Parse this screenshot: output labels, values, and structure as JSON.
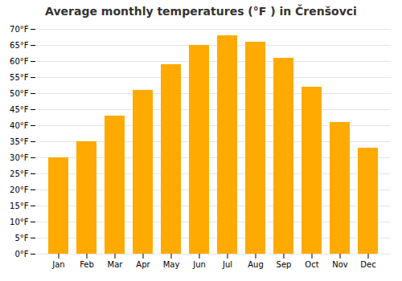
{
  "chart_data": {
    "type": "bar",
    "title": "Average monthly temperatures (°F ) in Črenšovci",
    "categories": [
      "Jan",
      "Feb",
      "Mar",
      "Apr",
      "May",
      "Jun",
      "Jul",
      "Aug",
      "Sep",
      "Oct",
      "Nov",
      "Dec"
    ],
    "values": [
      30,
      35,
      43,
      51,
      59,
      65,
      68,
      66,
      61,
      52,
      41,
      33
    ],
    "color": "#FFAA00",
    "ylim": [
      0,
      70
    ],
    "yticks": [
      {
        "value": 0,
        "label": "0°F"
      },
      {
        "value": 5,
        "label": "5°F"
      },
      {
        "value": 10,
        "label": "10°F"
      },
      {
        "value": 15,
        "label": "15°F"
      },
      {
        "value": 20,
        "label": "20°F"
      },
      {
        "value": 25,
        "label": "25°F"
      },
      {
        "value": 30,
        "label": "30°F"
      },
      {
        "value": 35,
        "label": "35°F"
      },
      {
        "value": 40,
        "label": "40°F"
      },
      {
        "value": 45,
        "label": "45°F"
      },
      {
        "value": 50,
        "label": "50°F"
      },
      {
        "value": 55,
        "label": "55°F"
      },
      {
        "value": 60,
        "label": "60°F"
      },
      {
        "value": 65,
        "label": "65°F"
      },
      {
        "value": 70,
        "label": "70°F"
      }
    ],
    "grid": true
  }
}
